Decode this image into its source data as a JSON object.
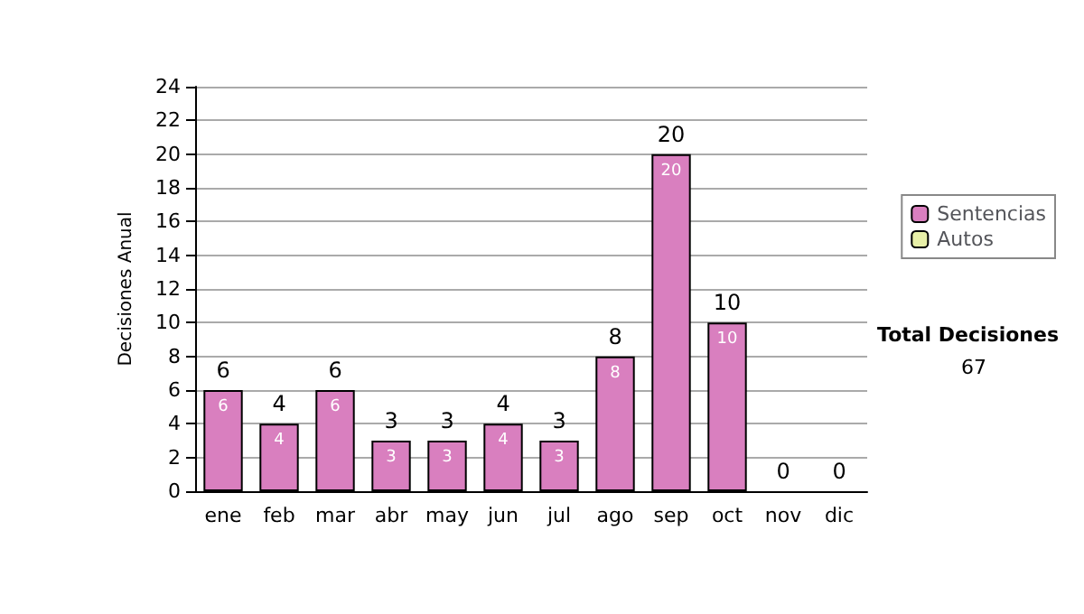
{
  "chart_data": {
    "type": "bar",
    "ylabel": "Decisiones Anual",
    "categories": [
      "ene",
      "feb",
      "mar",
      "abr",
      "may",
      "jun",
      "jul",
      "ago",
      "sep",
      "oct",
      "nov",
      "dic"
    ],
    "series": [
      {
        "name": "Sentencias",
        "color": "#d97fbf",
        "values": [
          6,
          4,
          6,
          3,
          3,
          4,
          3,
          8,
          20,
          10,
          0,
          0
        ],
        "value_labels": [
          "6",
          "4",
          "6",
          "3",
          "3",
          "4",
          "3",
          "8",
          "20",
          "10",
          null,
          null
        ]
      },
      {
        "name": "Autos",
        "color": "#e8f0a8",
        "values": [
          0,
          0,
          0,
          0,
          0,
          0,
          0,
          0,
          0,
          0,
          0,
          0
        ]
      }
    ],
    "stacked": true,
    "totals": [
      "6",
      "4",
      "6",
      "3",
      "3",
      "4",
      "3",
      "8",
      "20",
      "10",
      "0",
      "0"
    ],
    "ylim": [
      0,
      24
    ],
    "yticks": [
      0,
      2,
      4,
      6,
      8,
      10,
      12,
      14,
      16,
      18,
      20,
      22,
      24
    ],
    "grid": "y",
    "legend": "right",
    "annotations": [
      "Total Decisiones",
      "67"
    ]
  }
}
